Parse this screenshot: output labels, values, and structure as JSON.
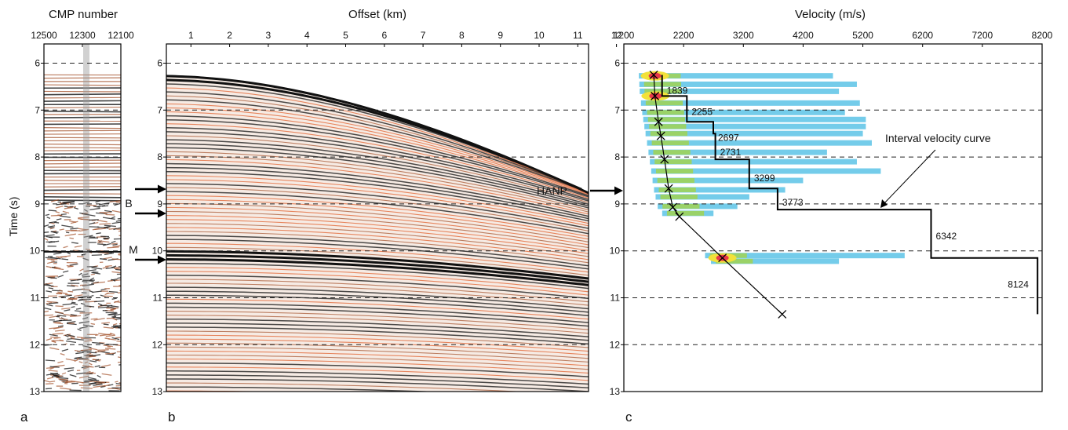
{
  "panels": {
    "a": {
      "title": "CMP number",
      "ylabel": "Time (s)",
      "x_ticks": [
        "12500",
        "12300",
        "12100"
      ],
      "label": "a"
    },
    "b": {
      "title": "Offset (km)",
      "x_ticks": [
        "1",
        "2",
        "3",
        "4",
        "5",
        "6",
        "7",
        "8",
        "9",
        "10",
        "11",
        "12"
      ],
      "label": "b",
      "annotations": [
        "B",
        "M"
      ]
    },
    "c": {
      "title": "Velocity (m/s)",
      "x_ticks": [
        "1200",
        "2200",
        "3200",
        "4200",
        "5200",
        "6200",
        "7200",
        "8200"
      ],
      "label": "c",
      "hanp_label": "HANP",
      "curve_label": "Interval velocity curve"
    }
  },
  "y_ticks": [
    "6",
    "7",
    "8",
    "9",
    "10",
    "11",
    "12",
    "13"
  ],
  "colors": {
    "seismic_dark": "#111111",
    "seismic_brown": "#a85a35",
    "seismic_orange": "#e0622f",
    "semblance_cyan": "#5cc3e6",
    "semblance_green": "#9ed35a",
    "semblance_yellow": "#f2e13a",
    "semblance_red": "#e8384a"
  },
  "chart_data": {
    "type": "line",
    "xlabel": "Velocity (m/s)",
    "ylabel": "Time (s)",
    "xlim": [
      1200,
      8200
    ],
    "ylim": [
      13,
      6
    ],
    "series": [
      {
        "name": "Interval velocity curve",
        "step": [
          {
            "t0": 6.25,
            "t1": 6.7,
            "v": 1839
          },
          {
            "t0": 6.7,
            "t1": 7.25,
            "v": 2255
          },
          {
            "t0": 7.25,
            "t1": 7.5,
            "v": 2697
          },
          {
            "t0": 7.5,
            "t1": 8.05,
            "v": 2731
          },
          {
            "t0": 8.05,
            "t1": 8.67,
            "v": 3299
          },
          {
            "t0": 8.67,
            "t1": 9.12,
            "v": 3773
          },
          {
            "t0": 9.12,
            "t1": 10.15,
            "v": 6342
          },
          {
            "t0": 10.15,
            "t1": 11.35,
            "v": 8124
          }
        ]
      },
      {
        "picks": [
          {
            "v": 1700,
            "t": 6.25
          },
          {
            "v": 1720,
            "t": 6.7
          },
          {
            "v": 1780,
            "t": 7.25
          },
          {
            "v": 1820,
            "t": 7.55
          },
          {
            "v": 1880,
            "t": 8.05
          },
          {
            "v": 1950,
            "t": 8.67
          },
          {
            "v": 2020,
            "t": 9.07
          },
          {
            "v": 2130,
            "t": 9.27
          },
          {
            "v": 2850,
            "t": 10.15
          },
          {
            "v": 3850,
            "t": 11.35
          }
        ]
      }
    ],
    "semblance_bands": [
      {
        "t": 6.27,
        "v_end": 4700
      },
      {
        "t": 6.45,
        "v_end": 5100
      },
      {
        "t": 6.6,
        "v_end": 4800
      },
      {
        "t": 6.85,
        "v_end": 5150
      },
      {
        "t": 7.05,
        "v_end": 4900
      },
      {
        "t": 7.2,
        "v_end": 5250
      },
      {
        "t": 7.35,
        "v_end": 5250
      },
      {
        "t": 7.5,
        "v_end": 5200
      },
      {
        "t": 7.7,
        "v_end": 5350
      },
      {
        "t": 7.9,
        "v_end": 4600
      },
      {
        "t": 8.1,
        "v_end": 5100
      },
      {
        "t": 8.3,
        "v_end": 5500
      },
      {
        "t": 8.5,
        "v_end": 4200
      },
      {
        "t": 8.7,
        "v_end": 3900
      },
      {
        "t": 8.85,
        "v_end": 3300
      },
      {
        "t": 9.05,
        "v_end": 3100
      },
      {
        "t": 9.2,
        "v_end": 2700
      },
      {
        "t": 10.1,
        "v_end": 5900
      },
      {
        "t": 10.22,
        "v_end": 4800
      }
    ],
    "labels_x": [
      1839,
      2255,
      2697,
      2731,
      3299,
      3773,
      6342,
      8124
    ]
  }
}
